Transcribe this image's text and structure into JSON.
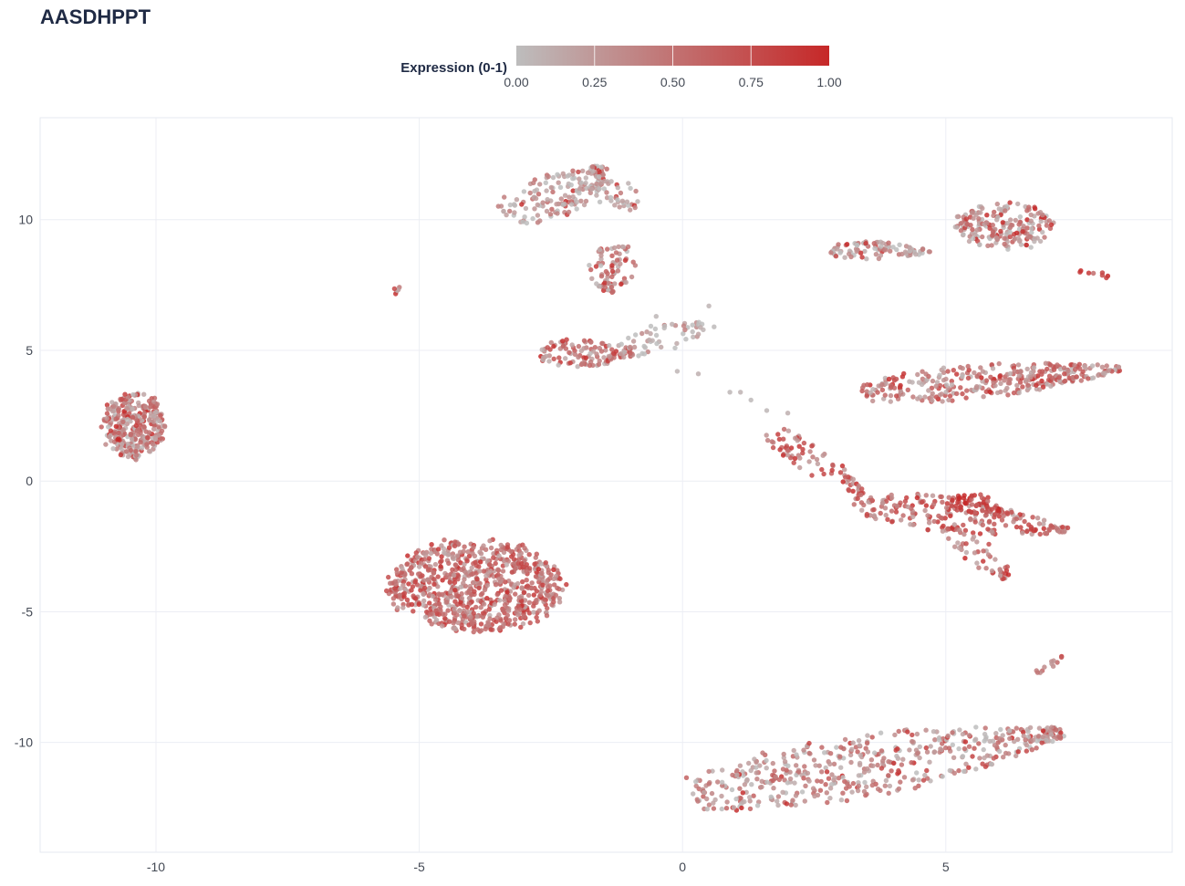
{
  "chart_data": {
    "type": "scatter",
    "title": "AASDHPPT",
    "xlim": [
      -12.2,
      9.3
    ],
    "ylim": [
      -14.2,
      13.9
    ],
    "x_ticks": [
      -10,
      -5,
      0,
      5
    ],
    "y_ticks": [
      10,
      5,
      0,
      -5,
      -10
    ],
    "grid": true,
    "colorbar": {
      "label": "Expression (0-1)",
      "min": 0,
      "max": 1,
      "ticks": [
        "0.00",
        "0.25",
        "0.50",
        "0.75",
        "1.00"
      ],
      "color_low": "#bdbdbd",
      "color_high": "#c62828",
      "placement": "top-center"
    },
    "clusters": [
      {
        "center": [
          -10.4,
          2.1
        ],
        "spread": [
          0.55,
          1.2
        ],
        "shape": "ellipse",
        "n": 320,
        "expression_mean": 0.35
      },
      {
        "center": [
          -3.9,
          -4.0
        ],
        "spread": [
          1.6,
          1.65
        ],
        "shape": "ellipse",
        "n": 800,
        "expression_mean": 0.45
      },
      {
        "center": [
          -5.4,
          7.3
        ],
        "spread": [
          0.12,
          0.08
        ],
        "shape": "ellipse",
        "n": 6,
        "expression_mean": 0.4
      },
      {
        "from": [
          -3.3,
          10.0
        ],
        "to": [
          -1.5,
          12.0
        ],
        "width": 0.6,
        "shape": "band",
        "n": 160,
        "expression_mean": 0.25
      },
      {
        "from": [
          -1.6,
          11.5
        ],
        "to": [
          -0.9,
          10.4
        ],
        "width": 0.4,
        "shape": "band",
        "n": 40,
        "expression_mean": 0.15
      },
      {
        "from": [
          -1.3,
          9.0
        ],
        "to": [
          -1.4,
          7.2
        ],
        "width": 0.4,
        "shape": "band",
        "n": 80,
        "expression_mean": 0.3
      },
      {
        "from": [
          -2.7,
          4.9
        ],
        "to": [
          -0.9,
          4.9
        ],
        "width": 0.45,
        "shape": "band",
        "n": 120,
        "expression_mean": 0.4
      },
      {
        "from": [
          -1.0,
          5.0
        ],
        "to": [
          0.4,
          6.0
        ],
        "width": 0.45,
        "shape": "band",
        "n": 50,
        "expression_mean": 0.1
      },
      {
        "from": [
          2.8,
          8.8
        ],
        "to": [
          4.7,
          8.8
        ],
        "width": 0.3,
        "shape": "band",
        "n": 90,
        "expression_mean": 0.25
      },
      {
        "center": [
          6.1,
          9.8
        ],
        "spread": [
          0.9,
          0.85
        ],
        "shape": "ellipse",
        "n": 200,
        "expression_mean": 0.3
      },
      {
        "from": [
          7.5,
          8.0
        ],
        "to": [
          8.2,
          7.8
        ],
        "width": 0.1,
        "shape": "band",
        "n": 8,
        "expression_mean": 0.8
      },
      {
        "from": [
          3.4,
          3.4
        ],
        "to": [
          8.3,
          4.3
        ],
        "width": 0.55,
        "shape": "band",
        "n": 330,
        "expression_mean": 0.38
      },
      {
        "from": [
          1.7,
          1.9
        ],
        "to": [
          3.4,
          -0.5
        ],
        "width": 0.35,
        "shape": "band",
        "n": 80,
        "expression_mean": 0.55
      },
      {
        "from": [
          3.2,
          -0.8
        ],
        "to": [
          7.3,
          -1.9
        ],
        "width": 0.55,
        "shape": "band",
        "n": 230,
        "expression_mean": 0.5
      },
      {
        "from": [
          5.2,
          -0.6
        ],
        "to": [
          6.0,
          -1.2
        ],
        "width": 0.3,
        "shape": "band",
        "n": 50,
        "expression_mean": 0.9
      },
      {
        "from": [
          5.2,
          -2.0
        ],
        "to": [
          6.2,
          -3.8
        ],
        "width": 0.3,
        "shape": "band",
        "n": 45,
        "expression_mean": 0.45
      },
      {
        "from": [
          0.2,
          -12.0
        ],
        "to": [
          7.2,
          -9.6
        ],
        "width": 1.0,
        "shape": "band",
        "n": 520,
        "expression_mean": 0.3
      },
      {
        "from": [
          6.7,
          -7.4
        ],
        "to": [
          7.2,
          -6.7
        ],
        "width": 0.1,
        "shape": "band",
        "n": 12,
        "expression_mean": 0.5
      }
    ],
    "scatter_x": [
      -0.1,
      0.3,
      0.9,
      1.3,
      1.6,
      2.0,
      1.1,
      -0.5,
      0.5,
      0.6,
      -0.2
    ],
    "scatter_y": [
      4.2,
      4.1,
      3.4,
      3.1,
      2.7,
      2.6,
      3.4,
      6.3,
      6.7,
      5.9,
      6.0
    ]
  }
}
